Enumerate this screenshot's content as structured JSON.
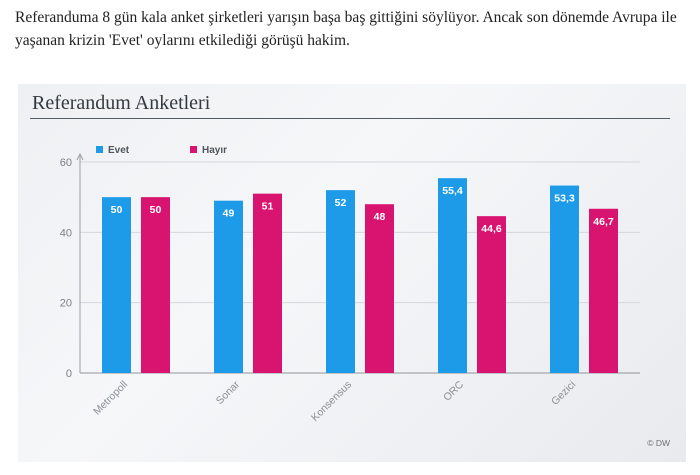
{
  "article": {
    "paragraph": "Referanduma 8 gün kala anket şirketleri yarışın başa baş gittiğini söylüyor. Ancak son dönemde Avrupa ile yaşanan krizin 'Evet' oylarını etkilediği görüşü hakim."
  },
  "chart_data": {
    "type": "bar",
    "title": "Referandum Anketleri",
    "categories": [
      "Metropoll",
      "Sonar",
      "Konsensus",
      "ORC",
      "Gezici"
    ],
    "series": [
      {
        "name": "Evet",
        "color": "#1e9be8",
        "values": [
          50,
          49,
          52,
          55.4,
          53.3
        ],
        "labels": [
          "50",
          "49",
          "52",
          "55,4",
          "53,3"
        ]
      },
      {
        "name": "Hayır",
        "color": "#d81370",
        "values": [
          50,
          51,
          48,
          44.6,
          46.7
        ],
        "labels": [
          "50",
          "51",
          "48",
          "44,6",
          "46,7"
        ]
      }
    ],
    "ylim": [
      0,
      60
    ],
    "yticks": [
      0,
      20,
      40,
      60
    ],
    "grid": true,
    "legend_position": "top-left",
    "xlabel": "",
    "ylabel": ""
  },
  "credit": "© DW"
}
